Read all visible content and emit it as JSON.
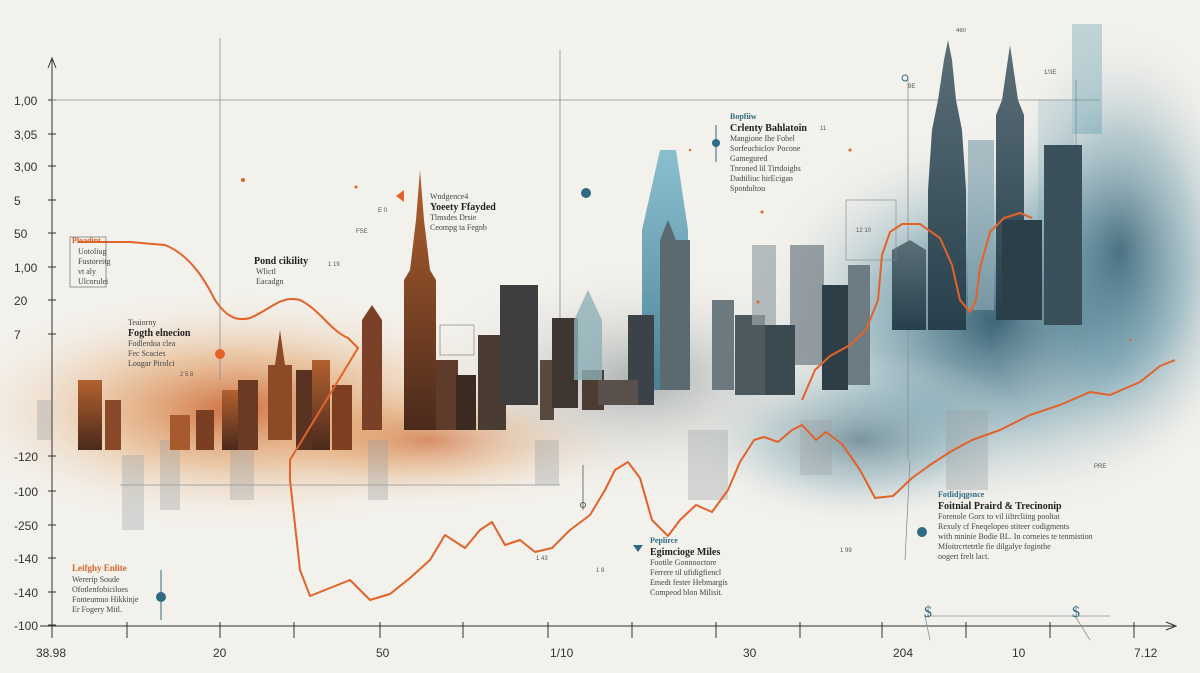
{
  "y_axis_labels": [
    "1,00",
    "3,05",
    "3,00",
    "5",
    "50",
    "1,00",
    "20",
    "7",
    "-120",
    "-100",
    "-250",
    "-140",
    "-140",
    "-100"
  ],
  "x_axis_labels": [
    "38.98",
    "20",
    "50",
    "1/10",
    "30",
    "204",
    "10",
    "7.12"
  ],
  "annotations": {
    "flourish": {
      "title": "Ploadint",
      "body": [
        "Uotoliug",
        "Fustoreitg",
        "vt aly",
        "Ulcorulei"
      ]
    },
    "pond": {
      "title": "Pond cikility",
      "body": [
        "Wlictl",
        "Eacadgn"
      ]
    },
    "tearly": {
      "title": "Teaiorny",
      "subtitle": "Fogth elnecion",
      "body": [
        "Fodlerdoa clea",
        "Fec Scacies",
        "Lougar Pirolci"
      ]
    },
    "weekly": {
      "kicker": "Wndgence4",
      "title": "Yoeety Ffayded",
      "body": [
        "Tlmsdes Drsie",
        "Ceompg ta Fegnb"
      ]
    },
    "celestial": {
      "kicker": "Bopfiiw",
      "title": "Crlenty Bahlatoin",
      "body": [
        "Mangione Ihe Fobel",
        "Sorfeuchiclov Pocone",
        "Gamegured",
        "Tnroned lil Tirtdoighs",
        "Dadtiliuc hirEcigan",
        "Spotdultou"
      ]
    },
    "engineering": {
      "kicker": "Peplirce",
      "title": "Egimcioge Miles",
      "body": [
        "Footile Gonnooctore",
        "Ferrere til ufidigfiencl",
        "Emedt fester Hebmargis",
        "Compeod blon Milisit."
      ]
    },
    "lengthy": {
      "title": "Leifghy Enlite",
      "body": [
        "Wererip Soude",
        "Ofotlenfobiciloes",
        "Fonteumuo Hikkinje",
        "Er Fogery Mitl."
      ]
    },
    "financial": {
      "kicker": "Fotlidjqgsnce",
      "title": "Foitnial Praird & Trecinonip",
      "body": [
        "Forenole Gorx to vil iiltrcliing pooltat",
        "Rexuly cf Fneqelopeo stiteer codigments",
        "with mninie Bodie BL. In corneies te tenmistion",
        "Mfoitrcrtetrtle fie dilgalye foginthe",
        "oogert frelt lact."
      ]
    },
    "dollar_left": "$",
    "dollar_right": "$"
  },
  "building_tags": [
    "460",
    "9E",
    "1/3E",
    "11",
    "FSE",
    "1 19",
    "E 0",
    "2 5 8",
    "12 10",
    "1 43",
    "1 8",
    "1 99",
    "PRE"
  ],
  "colors": {
    "background": "#f3f1ec",
    "orange_line": "#e2632a",
    "teal": "#2f7b94",
    "dark_teal": "#1f4e63",
    "warm": "#c2602a"
  }
}
